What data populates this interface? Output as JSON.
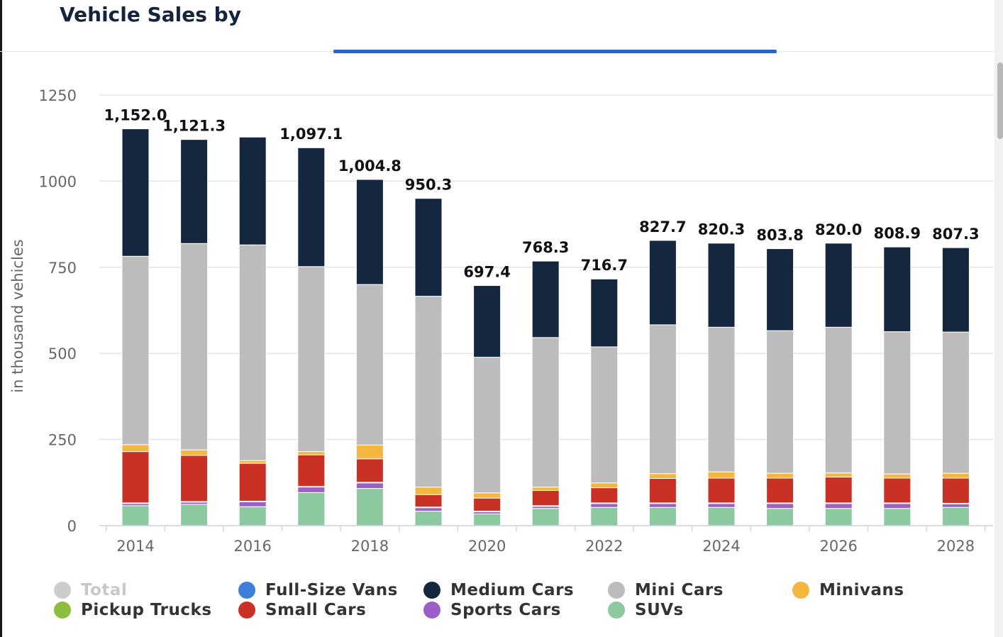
{
  "header": {
    "title": "Vehicle Sales by"
  },
  "chart_data": {
    "type": "bar",
    "stacked": true,
    "ylabel": "in thousand vehicles",
    "xlabel": "",
    "ylim": [
      0,
      1250
    ],
    "yticks": [
      0,
      250,
      500,
      750,
      1000,
      1250
    ],
    "xtick_labels": [
      "2014",
      "2016",
      "2018",
      "2020",
      "2022",
      "2024",
      "2026",
      "2028"
    ],
    "categories": [
      "2014",
      "2015",
      "2016",
      "2017",
      "2018",
      "2019",
      "2020",
      "2021",
      "2022",
      "2023",
      "2024",
      "2025",
      "2026",
      "2027",
      "2028"
    ],
    "totals": [
      1152.0,
      1121.3,
      1128.0,
      1097.1,
      1004.8,
      950.3,
      697.4,
      768.3,
      716.7,
      827.7,
      820.3,
      803.8,
      820.0,
      808.9,
      807.3
    ],
    "total_labels": [
      "1,152.0",
      "1,121.3",
      "",
      "1,097.1",
      "1,004.8",
      "950.3",
      "697.4",
      "768.3",
      "716.7",
      "827.7",
      "820.3",
      "803.8",
      "820.0",
      "808.9",
      "807.3"
    ],
    "series": [
      {
        "name": "SUVs",
        "color": "#8cc8a0",
        "values": [
          58,
          62,
          55,
          96,
          108,
          42,
          34,
          50,
          53,
          53,
          53,
          50,
          50,
          50,
          53
        ]
      },
      {
        "name": "Sports Cars",
        "color": "#9b5fc6",
        "values": [
          6,
          6,
          14,
          16,
          16,
          10,
          6,
          6,
          11,
          11,
          11,
          14,
          14,
          14,
          10
        ]
      },
      {
        "name": "Full-Size Vans",
        "color": "#3f7fd9",
        "values": [
          1,
          1,
          1,
          1,
          1,
          1,
          1,
          1,
          1,
          1,
          1,
          1,
          1,
          1,
          1
        ]
      },
      {
        "name": "Pickup Trucks",
        "color": "#8dbd3e",
        "values": [
          1,
          1,
          1,
          1,
          1,
          1,
          1,
          1,
          1,
          1,
          1,
          1,
          1,
          1,
          1
        ]
      },
      {
        "name": "Small Cars",
        "color": "#c93124",
        "values": [
          149,
          134,
          110,
          91,
          68,
          36,
          38,
          44,
          44,
          71,
          72,
          72,
          75,
          72,
          73
        ]
      },
      {
        "name": "Minivans",
        "color": "#f4b63f",
        "values": [
          20,
          16,
          8,
          10,
          40,
          22,
          15,
          10,
          14,
          14,
          18,
          14,
          12,
          12,
          14
        ]
      },
      {
        "name": "Mini Cars",
        "color": "#bcbcbc",
        "values": [
          547,
          599,
          626,
          537,
          466,
          554,
          394,
          434,
          395,
          432,
          420,
          414,
          423,
          413,
          410
        ]
      },
      {
        "name": "Medium Cars",
        "color": "#15263f",
        "values": [
          370,
          302,
          313,
          345,
          305,
          284,
          208,
          222,
          197,
          245,
          244,
          238,
          244,
          246,
          245
        ]
      }
    ],
    "legend": [
      {
        "name": "Total",
        "color": "#cccccc",
        "hidden": true
      },
      {
        "name": "Full-Size Vans",
        "color": "#3f7fd9"
      },
      {
        "name": "Medium Cars",
        "color": "#15263f"
      },
      {
        "name": "Mini Cars",
        "color": "#bcbcbc"
      },
      {
        "name": "Minivans",
        "color": "#f4b63f"
      },
      {
        "name": "Pickup Trucks",
        "color": "#8dbd3e"
      },
      {
        "name": "Small Cars",
        "color": "#c93124"
      },
      {
        "name": "Sports Cars",
        "color": "#9b5fc6"
      },
      {
        "name": "SUVs",
        "color": "#8cc8a0"
      }
    ],
    "grid": true,
    "legend_position": "bottom"
  }
}
